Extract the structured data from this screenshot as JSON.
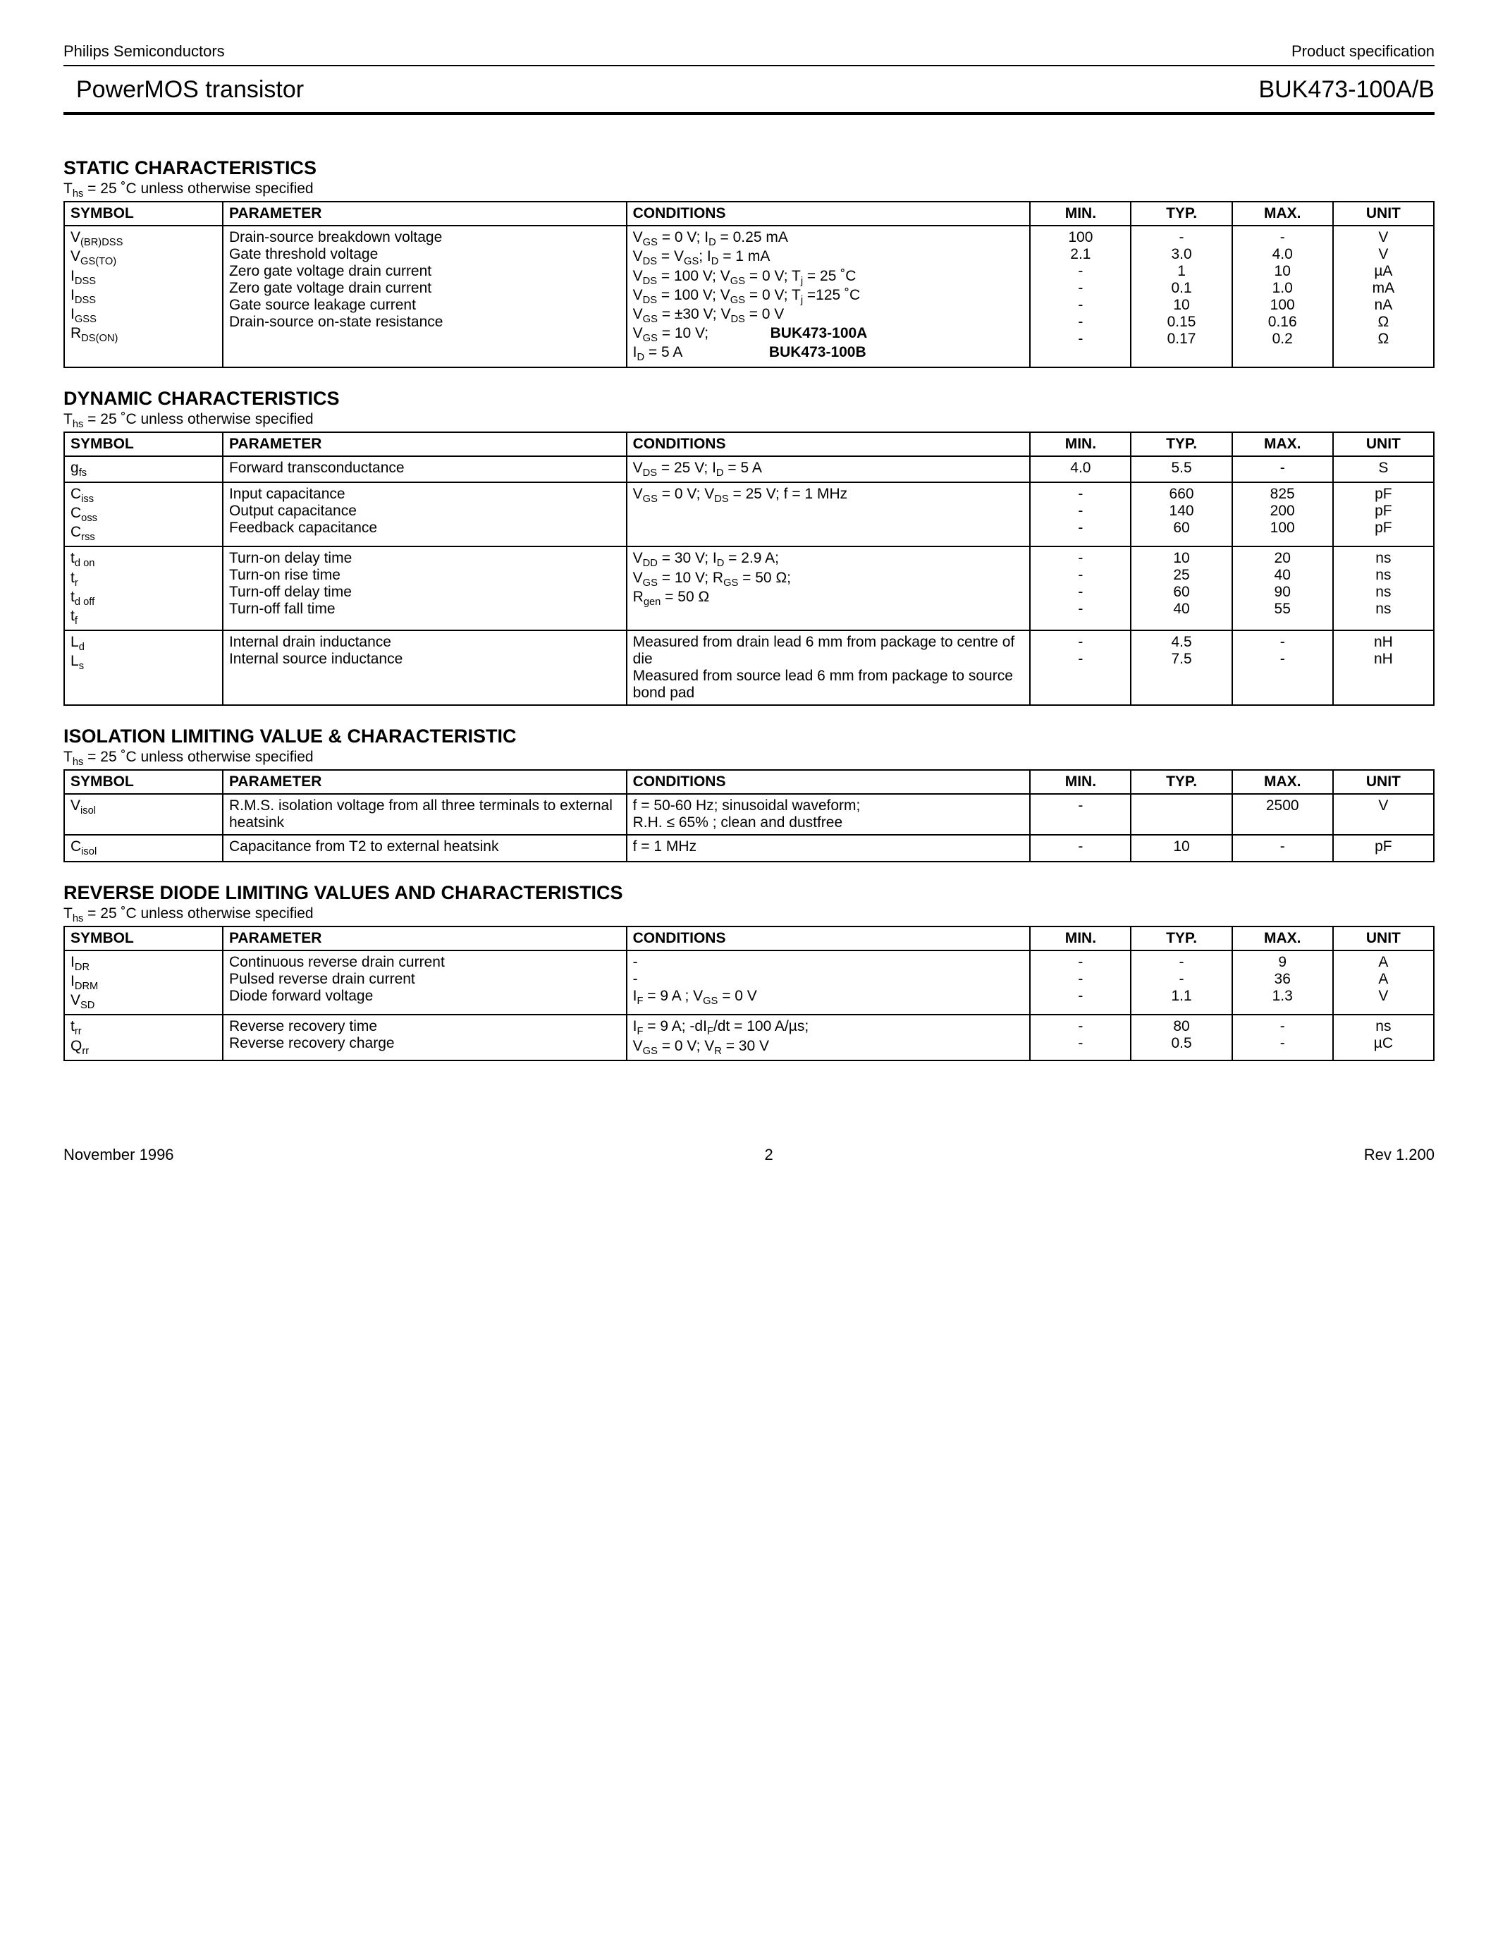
{
  "header": {
    "company": "Philips Semiconductors",
    "doctype": "Product specification",
    "product": "PowerMOS transistor",
    "partno": "BUK473-100A/B"
  },
  "footer": {
    "date": "November 1996",
    "page": "2",
    "rev": "Rev 1.200"
  },
  "columns": {
    "symbol": "SYMBOL",
    "parameter": "PARAMETER",
    "conditions": "CONDITIONS",
    "min": "MIN.",
    "typ": "TYP.",
    "max": "MAX.",
    "unit": "UNIT"
  },
  "tempnote": "T<sub>hs</sub> = 25 ˚C unless otherwise specified",
  "sections": {
    "static": {
      "title": "STATIC CHARACTERISTICS",
      "groups": [
        [
          {
            "sym": "V<sub>(BR)DSS</sub>",
            "param": "Drain-source breakdown voltage",
            "cond": "V<sub>GS</sub> = 0 V; I<sub>D</sub> = 0.25 mA",
            "min": "100",
            "typ": "-",
            "max": "-",
            "unit": "V"
          },
          {
            "sym": "V<sub>GS(TO)</sub>",
            "param": "Gate threshold voltage",
            "cond": "V<sub>DS</sub> = V<sub>GS</sub>; I<sub>D</sub> = 1 mA",
            "min": "2.1",
            "typ": "3.0",
            "max": "4.0",
            "unit": "V"
          },
          {
            "sym": "I<sub>DSS</sub>",
            "param": "Zero gate voltage drain current",
            "cond": "V<sub>DS</sub> = 100 V; V<sub>GS</sub> = 0 V; T<sub>j</sub> = 25 ˚C",
            "min": "-",
            "typ": "1",
            "max": "10",
            "unit": "µA"
          },
          {
            "sym": "I<sub>DSS</sub>",
            "param": "Zero gate voltage drain current",
            "cond": "V<sub>DS</sub> = 100 V; V<sub>GS</sub> = 0 V; T<sub>j</sub> =125 ˚C",
            "min": "-",
            "typ": "0.1",
            "max": "1.0",
            "unit": "mA"
          },
          {
            "sym": "I<sub>GSS</sub>",
            "param": "Gate source leakage current",
            "cond": "V<sub>GS</sub> = ±30 V; V<sub>DS</sub> = 0 V",
            "min": "-",
            "typ": "10",
            "max": "100",
            "unit": "nA"
          },
          {
            "sym": "R<sub>DS(ON)</sub>",
            "param": "Drain-source on-state resistance",
            "cond": "V<sub>GS</sub> = 10 V;&nbsp;&nbsp;&nbsp;&nbsp;&nbsp;&nbsp;&nbsp;&nbsp;&nbsp;&nbsp;&nbsp;&nbsp;&nbsp;&nbsp;&nbsp;<b>BUK473-100A</b><br>I<sub>D</sub> = 5 A&nbsp;&nbsp;&nbsp;&nbsp;&nbsp;&nbsp;&nbsp;&nbsp;&nbsp;&nbsp;&nbsp;&nbsp;&nbsp;&nbsp;&nbsp;&nbsp;&nbsp;&nbsp;&nbsp;&nbsp;&nbsp;<b>BUK473-100B</b>",
            "min": "-<br>-",
            "typ": "0.15<br>0.17",
            "max": "0.16<br>0.2",
            "unit": "Ω<br>Ω"
          }
        ]
      ]
    },
    "dynamic": {
      "title": "DYNAMIC CHARACTERISTICS",
      "groups": [
        [
          {
            "sym": "g<sub>fs</sub>",
            "param": "Forward transconductance",
            "cond": "V<sub>DS</sub> = 25 V; I<sub>D</sub> = 5 A",
            "min": "4.0",
            "typ": "5.5",
            "max": "-",
            "unit": "S"
          }
        ],
        [
          {
            "sym": "C<sub>iss</sub>",
            "param": "Input capacitance",
            "cond": "V<sub>GS</sub> = 0 V; V<sub>DS</sub> = 25 V; f = 1 MHz",
            "min": "-",
            "typ": "660",
            "max": "825",
            "unit": "pF"
          },
          {
            "sym": "C<sub>oss</sub>",
            "param": "Output capacitance",
            "cond": "",
            "min": "-",
            "typ": "140",
            "max": "200",
            "unit": "pF"
          },
          {
            "sym": "C<sub>rss</sub>",
            "param": "Feedback capacitance",
            "cond": "",
            "min": "-",
            "typ": "60",
            "max": "100",
            "unit": "pF"
          }
        ],
        [
          {
            "sym": "t<sub>d on</sub>",
            "param": "Turn-on delay time",
            "cond": "V<sub>DD</sub> = 30 V; I<sub>D</sub> = 2.9 A;",
            "min": "-",
            "typ": "10",
            "max": "20",
            "unit": "ns"
          },
          {
            "sym": "t<sub>r</sub>",
            "param": "Turn-on rise time",
            "cond": "V<sub>GS</sub> = 10 V; R<sub>GS</sub> = 50 Ω;",
            "min": "-",
            "typ": "25",
            "max": "40",
            "unit": "ns"
          },
          {
            "sym": "t<sub>d off</sub>",
            "param": "Turn-off delay time",
            "cond": "R<sub>gen</sub> = 50 Ω",
            "min": "-",
            "typ": "60",
            "max": "90",
            "unit": "ns"
          },
          {
            "sym": "t<sub>f</sub>",
            "param": "Turn-off fall time",
            "cond": "",
            "min": "-",
            "typ": "40",
            "max": "55",
            "unit": "ns"
          }
        ],
        [
          {
            "sym": "L<sub>d</sub>",
            "param": "Internal drain inductance",
            "cond": "Measured from drain lead 6 mm from package to centre of die",
            "min": "-",
            "typ": "4.5",
            "max": "-",
            "unit": "nH"
          },
          {
            "sym": "L<sub>s</sub>",
            "param": "Internal source inductance",
            "cond": "Measured from source lead 6 mm from package to source bond pad",
            "min": "-",
            "typ": "7.5",
            "max": "-",
            "unit": "nH"
          }
        ]
      ]
    },
    "isolation": {
      "title": "ISOLATION LIMITING VALUE & CHARACTERISTIC",
      "groups": [
        [
          {
            "sym": "V<sub>isol</sub>",
            "param": "R.M.S. isolation voltage from all three terminals to external heatsink",
            "cond": "f = 50-60 Hz; sinusoidal waveform;<br>R.H. ≤ 65% ; clean and dustfree",
            "min": "-",
            "typ": "",
            "max": "2500",
            "unit": "V"
          }
        ],
        [
          {
            "sym": "C<sub>isol</sub>",
            "param": "Capacitance from T2 to external heatsink",
            "cond": "f = 1 MHz",
            "min": "-",
            "typ": "10",
            "max": "-",
            "unit": "pF"
          }
        ]
      ]
    },
    "reverse": {
      "title": "REVERSE DIODE LIMITING VALUES AND CHARACTERISTICS",
      "groups": [
        [
          {
            "sym": "I<sub>DR</sub>",
            "param": "Continuous reverse drain current",
            "cond": "-",
            "min": "-",
            "typ": "-",
            "max": "9",
            "unit": "A"
          },
          {
            "sym": "I<sub>DRM</sub>",
            "param": "Pulsed reverse drain current",
            "cond": "-",
            "min": "-",
            "typ": "-",
            "max": "36",
            "unit": "A"
          },
          {
            "sym": "V<sub>SD</sub>",
            "param": "Diode forward voltage",
            "cond": "I<sub>F</sub> = 9 A ; V<sub>GS</sub> = 0 V",
            "min": "-",
            "typ": "1.1",
            "max": "1.3",
            "unit": "V"
          }
        ],
        [
          {
            "sym": "t<sub>rr</sub>",
            "param": "Reverse recovery time",
            "cond": "I<sub>F</sub> = 9 A; -dI<sub>F</sub>/dt = 100 A/µs;",
            "min": "-",
            "typ": "80",
            "max": "-",
            "unit": "ns"
          },
          {
            "sym": "Q<sub>rr</sub>",
            "param": "Reverse recovery charge",
            "cond": "V<sub>GS</sub> = 0 V; V<sub>R</sub> = 30 V",
            "min": "-",
            "typ": "0.5",
            "max": "-",
            "unit": "µC"
          }
        ]
      ]
    }
  }
}
